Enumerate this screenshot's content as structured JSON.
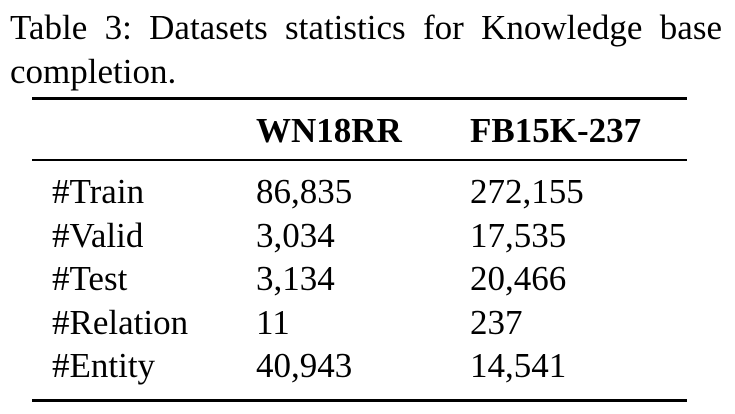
{
  "caption": {
    "text": "Table 3:  Datasets statistics for Knowledge base completion."
  },
  "table": {
    "headers": [
      "",
      "WN18RR",
      "FB15K-237"
    ],
    "rows": [
      {
        "label": "#Train",
        "wn18rr": "86,835",
        "fb15k237": "272,155"
      },
      {
        "label": "#Valid",
        "wn18rr": "3,034",
        "fb15k237": "17,535"
      },
      {
        "label": "#Test",
        "wn18rr": "3,134",
        "fb15k237": "20,466"
      },
      {
        "label": "#Relation",
        "wn18rr": "11",
        "fb15k237": "237"
      },
      {
        "label": "#Entity",
        "wn18rr": "40,943",
        "fb15k237": "14,541"
      }
    ]
  }
}
